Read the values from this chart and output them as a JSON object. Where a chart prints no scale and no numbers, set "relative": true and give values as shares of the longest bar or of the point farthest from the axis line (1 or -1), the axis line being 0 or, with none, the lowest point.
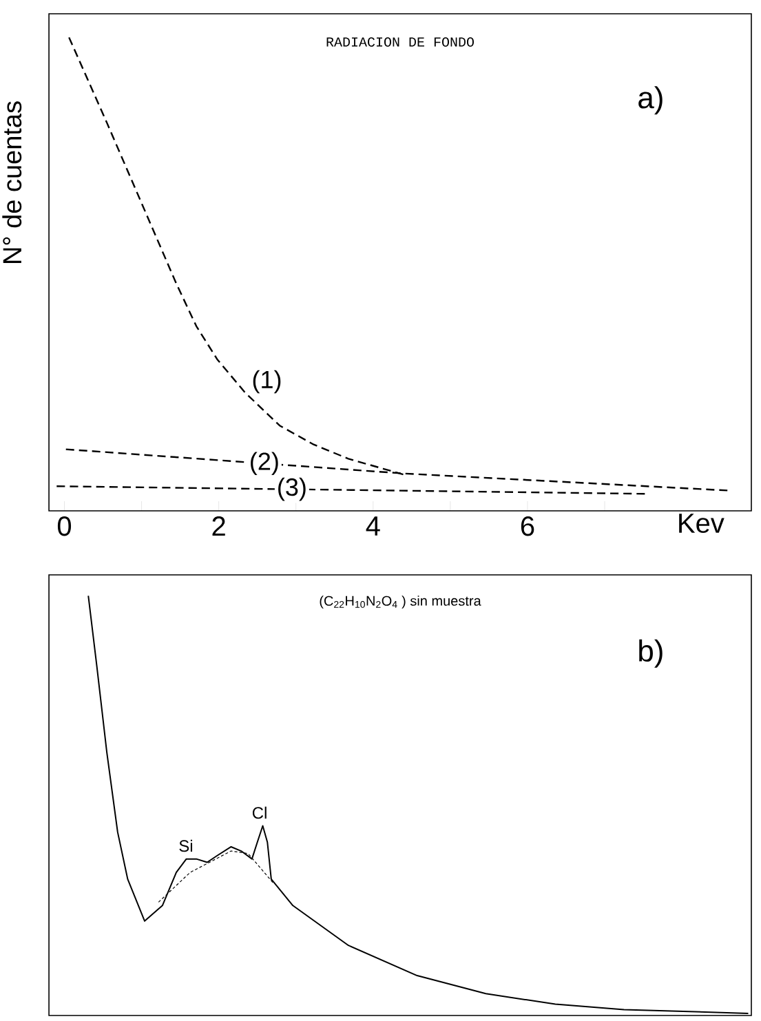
{
  "chart_data": [
    {
      "type": "line",
      "title": "RADIACION DE FONDO",
      "xlabel": "Kev",
      "ylabel": "N° de cuentas",
      "relative": true,
      "xlim": [
        -0.2,
        8.9
      ],
      "xticks": [
        0,
        {
          "value": 1,
          "label": null
        },
        2,
        {
          "value": 3,
          "label": null
        },
        4,
        {
          "value": 5,
          "label": null
        },
        6,
        {
          "value": 7,
          "label": null
        }
      ],
      "tick_labels": "x",
      "annotations": [
        "a)"
      ],
      "series": [
        {
          "name": "(1)",
          "color": "#000000",
          "line_style": "dashed",
          "x": [
            0.06,
            0.55,
            1.0,
            1.45,
            1.71,
            1.98,
            2.34,
            2.79,
            3.23,
            3.68,
            4.13,
            4.39
          ],
          "values": [
            1.0,
            0.82,
            0.65,
            0.48,
            0.39,
            0.32,
            0.25,
            0.18,
            0.14,
            0.11,
            0.089,
            0.077
          ]
        },
        {
          "name": "(2)",
          "color": "#000000",
          "line_style": "dashed",
          "x": [
            0.02,
            4.39,
            8.59
          ],
          "values": [
            0.13,
            0.079,
            0.043
          ]
        },
        {
          "name": "(3)",
          "color": "#000000",
          "line_style": "dashed",
          "x": [
            -0.1,
            7.52
          ],
          "values": [
            0.052,
            0.036
          ]
        }
      ]
    },
    {
      "type": "line",
      "title": "(C$_{22}$H$_{10}$N$_{2}$O$_{4}$ ) sin muestra",
      "relative": true,
      "xlim": [
        -0.2,
        8.9
      ],
      "tick_labels": false,
      "annotations": [
        "b)",
        "Si",
        "Cl"
      ],
      "series": [
        {
          "color": "#000000",
          "line_style": "solid",
          "x": [
            0.31,
            0.42,
            0.55,
            0.69,
            0.82,
            1.04,
            1.27,
            1.45,
            1.58,
            1.71,
            1.85,
            1.98,
            2.16,
            2.29,
            2.43,
            2.5,
            2.57,
            2.63,
            2.68,
            2.96,
            3.68,
            4.57,
            5.46,
            6.36,
            7.25,
            8.86
          ],
          "values": [
            1.0,
            0.833,
            0.627,
            0.437,
            0.325,
            0.225,
            0.262,
            0.341,
            0.373,
            0.373,
            0.365,
            0.381,
            0.402,
            0.392,
            0.373,
            0.413,
            0.452,
            0.413,
            0.325,
            0.262,
            0.167,
            0.095,
            0.052,
            0.027,
            0.014,
            0.005
          ]
        },
        {
          "color": "#000000",
          "line_style": "dashed",
          "x": [
            1.22,
            1.63,
            2.16,
            2.38,
            2.7
          ],
          "values": [
            0.27,
            0.341,
            0.392,
            0.386,
            0.317
          ]
        }
      ]
    }
  ]
}
